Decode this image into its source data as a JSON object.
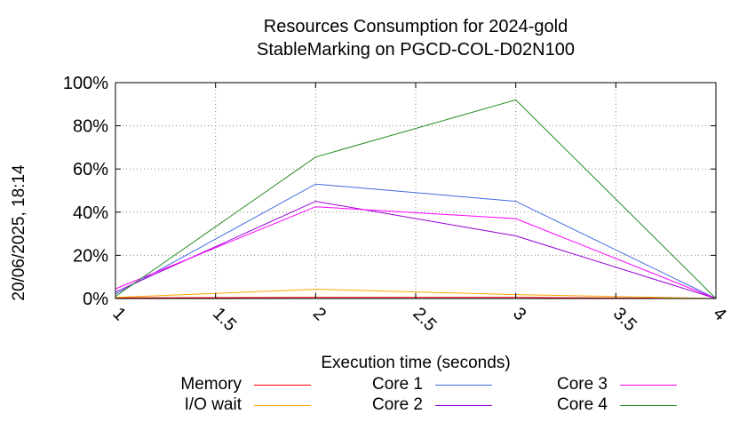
{
  "chart_data": {
    "type": "line",
    "title": [
      "Resources Consumption for 2024-gold",
      "StableMarking on PGCD-COL-D02N100"
    ],
    "xlabel": "Execution time (seconds)",
    "ylabel": "",
    "timestamp": "20/06/2025, 18:14",
    "xlim": [
      1,
      4
    ],
    "ylim": [
      0,
      100
    ],
    "xticks": [
      1,
      1.5,
      2,
      2.5,
      3,
      3.5,
      4
    ],
    "xtick_labels": [
      "1",
      "1.5",
      "2",
      "2.5",
      "3",
      "3.5",
      "4"
    ],
    "yticks": [
      0,
      20,
      40,
      60,
      80,
      100
    ],
    "ytick_labels": [
      "0%",
      "20%",
      "40%",
      "60%",
      "80%",
      "100%"
    ],
    "grid": true,
    "legend_position": "bottom",
    "series": [
      {
        "name": "Memory",
        "color": "#ff0000",
        "x": [
          1,
          2,
          3,
          4
        ],
        "y": [
          0.3,
          0.5,
          0.5,
          0
        ]
      },
      {
        "name": "I/O wait",
        "color": "#ffa500",
        "x": [
          1,
          2,
          3,
          4
        ],
        "y": [
          0.5,
          4.3,
          1.8,
          0
        ]
      },
      {
        "name": "Core 1",
        "color": "#4169e1",
        "x": [
          1,
          2,
          3,
          4
        ],
        "y": [
          2,
          53,
          45,
          0
        ]
      },
      {
        "name": "Core 2",
        "color": "#9400d3",
        "x": [
          1,
          2,
          3,
          4
        ],
        "y": [
          3,
          45,
          29,
          0
        ]
      },
      {
        "name": "Core 3",
        "color": "#ff00ff",
        "x": [
          1,
          2,
          3,
          4
        ],
        "y": [
          4.5,
          42.5,
          37,
          0
        ]
      },
      {
        "name": "Core 4",
        "color": "#228b22",
        "x": [
          1,
          2,
          3,
          4
        ],
        "y": [
          1,
          65.5,
          92,
          0
        ]
      }
    ]
  }
}
